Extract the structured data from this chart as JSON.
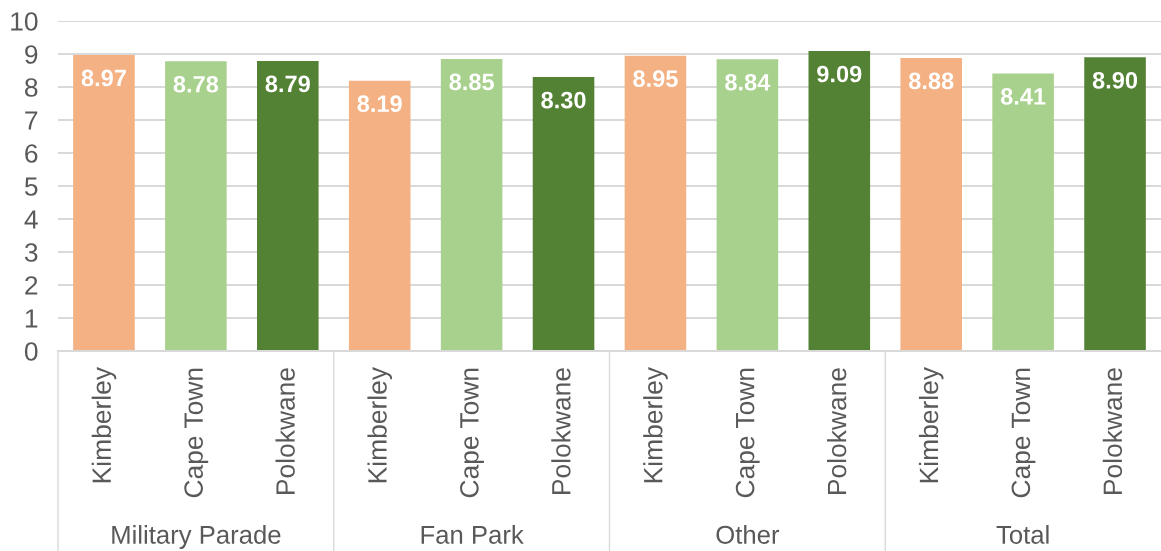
{
  "chart_data": {
    "type": "bar",
    "categories": [
      "Kimberley",
      "Cape Town",
      "Polokwane",
      "Kimberley",
      "Cape Town",
      "Polokwane",
      "Kimberley",
      "Cape Town",
      "Polokwane",
      "Kimberley",
      "Cape Town",
      "Polokwane"
    ],
    "values": [
      8.97,
      8.78,
      8.79,
      8.19,
      8.85,
      8.3,
      8.95,
      8.84,
      9.09,
      8.88,
      8.41,
      8.9
    ],
    "value_labels": [
      "8.97",
      "8.78",
      "8.79",
      "8.19",
      "8.85",
      "8.30",
      "8.95",
      "8.84",
      "9.09",
      "8.88",
      "8.41",
      "8.90"
    ],
    "colors": [
      "#f4b183",
      "#a9d18e",
      "#548235",
      "#f4b183",
      "#a9d18e",
      "#548235",
      "#f4b183",
      "#a9d18e",
      "#548235",
      "#f4b183",
      "#a9d18e",
      "#548235"
    ],
    "annotations": [
      "Military Parade",
      "Fan Park",
      "Other",
      "Total"
    ],
    "ylim": [
      0,
      10
    ],
    "yticks": [
      0,
      1,
      2,
      3,
      4,
      5,
      6,
      7,
      8,
      9,
      10
    ],
    "grid": "y"
  }
}
